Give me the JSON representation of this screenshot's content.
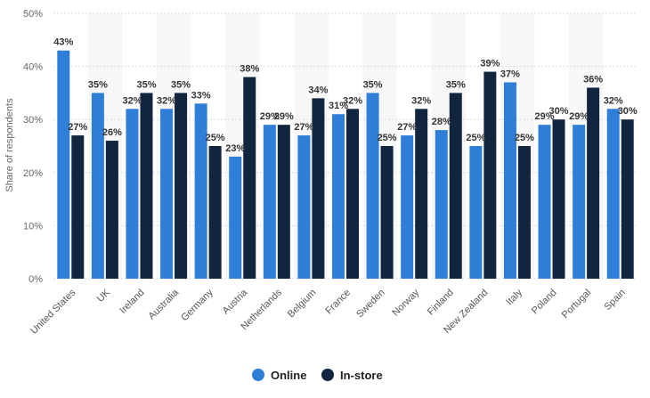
{
  "chart_data": {
    "type": "bar",
    "title": "",
    "xlabel": "",
    "ylabel": "Share of respondents",
    "ylim": [
      0,
      50
    ],
    "yticks": [
      "0%",
      "10%",
      "20%",
      "30%",
      "40%",
      "50%"
    ],
    "ytick_values": [
      0,
      10,
      20,
      30,
      40,
      50
    ],
    "unit": "%",
    "grid": true,
    "legend_position": "bottom",
    "categories": [
      "United States",
      "UK",
      "Ireland",
      "Australia",
      "Germany",
      "Austria",
      "Netherlands",
      "Belgium",
      "France",
      "Sweden",
      "Norway",
      "Finland",
      "New Zealand",
      "Italy",
      "Poland",
      "Portugal",
      "Spain"
    ],
    "series": [
      {
        "name": "Online",
        "color": "#2f7ed8",
        "values": [
          43,
          35,
          32,
          32,
          33,
          23,
          29,
          27,
          31,
          35,
          27,
          28,
          25,
          37,
          29,
          29,
          32
        ]
      },
      {
        "name": "In-store",
        "color": "#12253f",
        "values": [
          27,
          26,
          35,
          35,
          25,
          38,
          29,
          34,
          32,
          25,
          32,
          35,
          39,
          25,
          30,
          36,
          30
        ]
      }
    ]
  }
}
